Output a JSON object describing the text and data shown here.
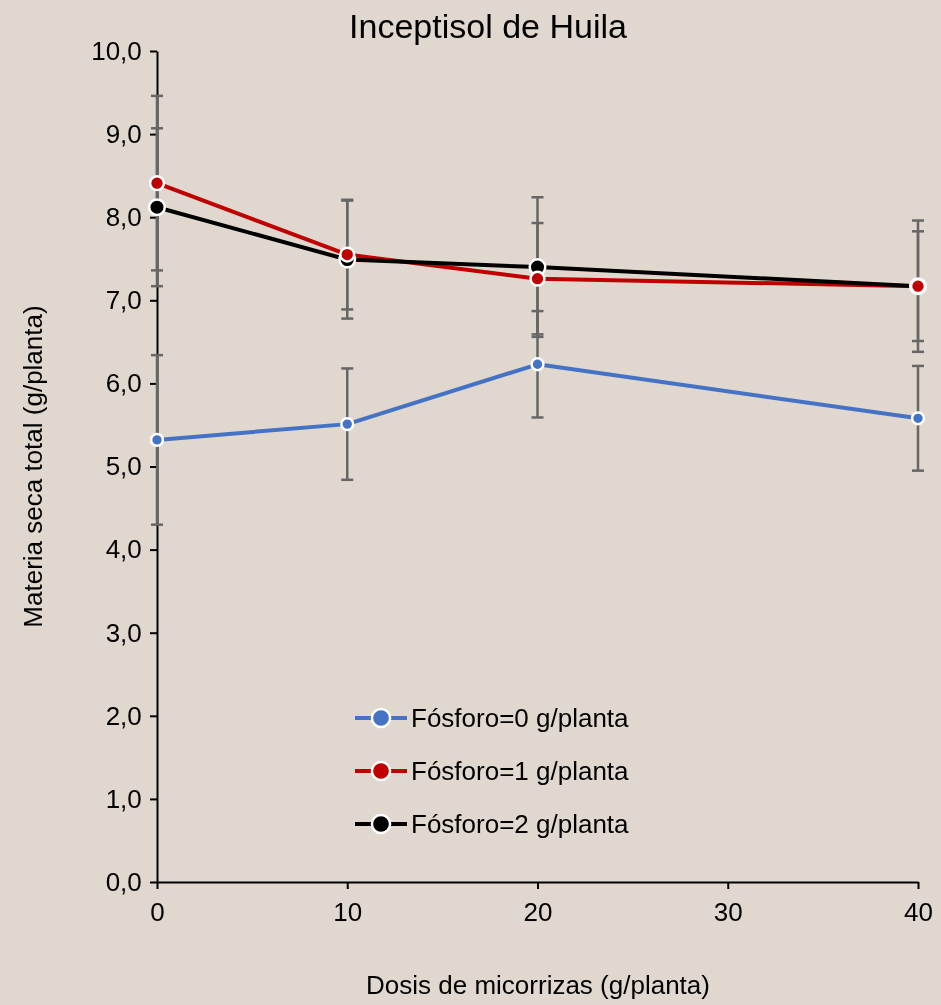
{
  "chart_data": {
    "type": "line",
    "title": "Inceptisol de Huila",
    "xlabel": "Dosis de micorrizas (g/planta)",
    "ylabel": "Materia seca total (g/planta)",
    "x": [
      0,
      10,
      20,
      40
    ],
    "series": [
      {
        "name": "Fósforo=0 g/planta",
        "color": "#4472c4",
        "values": [
          5.32,
          5.51,
          6.23,
          5.58
        ],
        "errors": [
          1.02,
          0.67,
          0.64,
          0.63
        ]
      },
      {
        "name": "Fósforo=1 g/planta",
        "color": "#c00000",
        "values": [
          8.41,
          7.55,
          7.26,
          7.17
        ],
        "errors": [
          1.05,
          0.66,
          0.67,
          0.66
        ]
      },
      {
        "name": "Fósforo=2 g/planta",
        "color": "#000000",
        "values": [
          8.12,
          7.49,
          7.4,
          7.17
        ],
        "errors": [
          0.95,
          0.71,
          0.84,
          0.79
        ]
      }
    ],
    "xlim": [
      0,
      40
    ],
    "xticks": [
      0,
      10,
      20,
      30,
      40
    ],
    "ylim": [
      0,
      10
    ],
    "yticks": [
      {
        "value": 0,
        "label": "0,0"
      },
      {
        "value": 1,
        "label": "1,0"
      },
      {
        "value": 2,
        "label": "2,0"
      },
      {
        "value": 3,
        "label": "3,0"
      },
      {
        "value": 4,
        "label": "4,0"
      },
      {
        "value": 5,
        "label": "5,0"
      },
      {
        "value": 6,
        "label": "6,0"
      },
      {
        "value": 7,
        "label": "7,0"
      },
      {
        "value": 8,
        "label": "8,0"
      },
      {
        "value": 9,
        "label": "9,0"
      },
      {
        "value": 10,
        "label": "10,0"
      }
    ],
    "grid": false,
    "legend": "bottom",
    "marker": "circle",
    "line_style": "solid"
  }
}
